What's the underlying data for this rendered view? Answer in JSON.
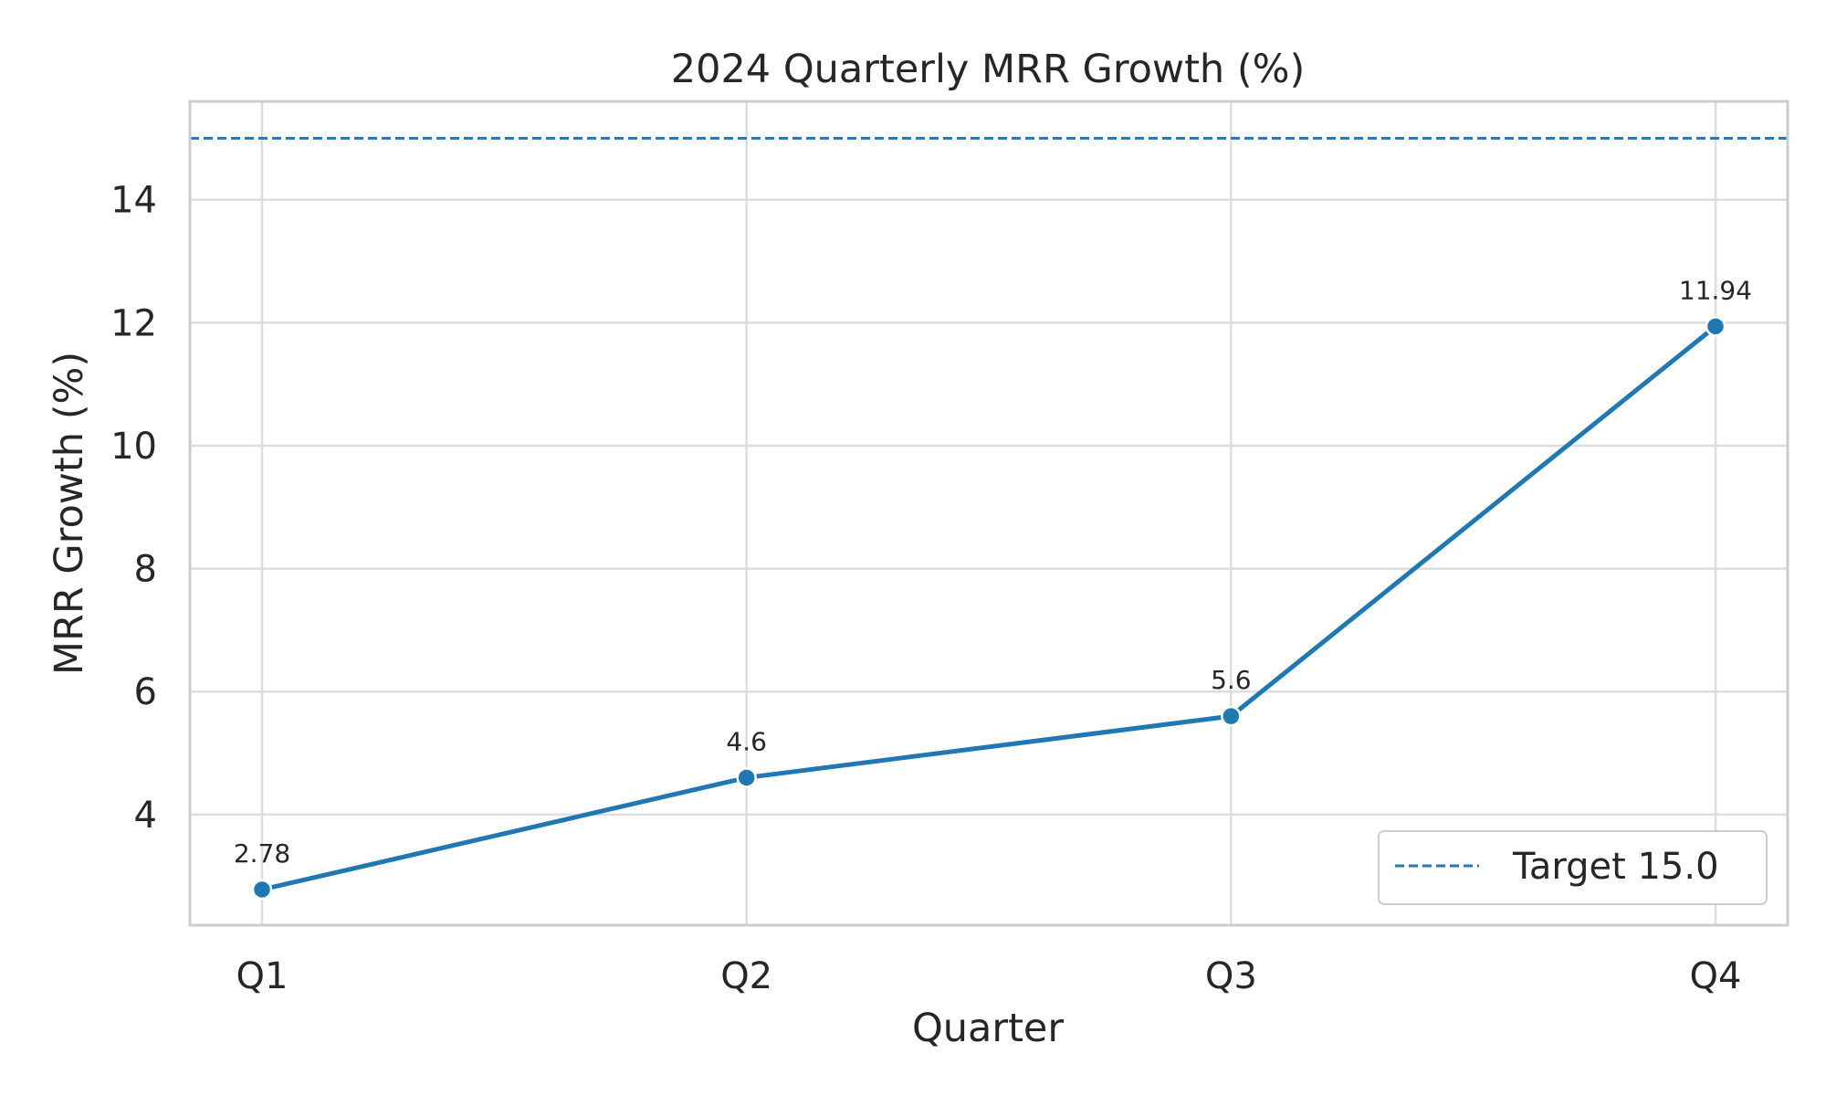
{
  "chart_data": {
    "type": "line",
    "title": "2024 Quarterly MRR Growth (%)",
    "xlabel": "Quarter",
    "ylabel": "MRR Growth (%)",
    "categories": [
      "Q1",
      "Q2",
      "Q3",
      "Q4"
    ],
    "series": [
      {
        "values": [
          2.78,
          4.6,
          5.6,
          11.94
        ],
        "color": "#1f77b4"
      }
    ],
    "data_labels": [
      "2.78",
      "4.6",
      "5.6",
      "11.94"
    ],
    "ylim": [
      2.2,
      15.6
    ],
    "yticks": [
      4,
      6,
      8,
      10,
      12,
      14
    ],
    "ytick_labels": [
      "4",
      "6",
      "8",
      "10",
      "12",
      "14"
    ],
    "reference_line": {
      "value": 15.0,
      "style": "dashed",
      "color": "#1f77b4"
    },
    "legend": {
      "label": "Target 15.0",
      "placement": "lower-right"
    },
    "grid": true
  }
}
